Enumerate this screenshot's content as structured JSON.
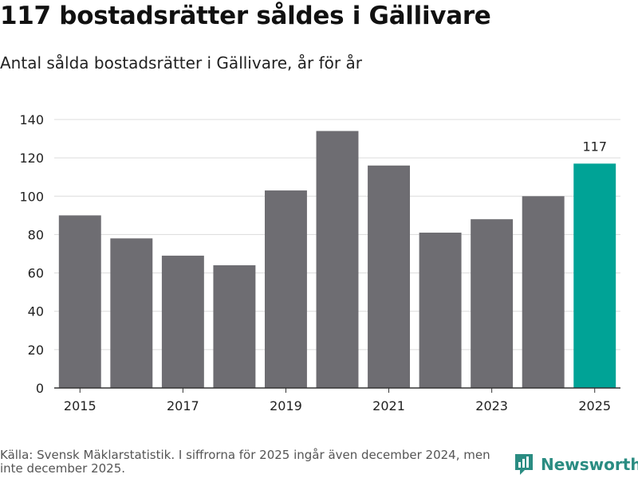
{
  "header": {
    "title": "117 bostadsrätter såldes i Gällivare",
    "subtitle": "Antal sålda bostadsrätter i Gällivare, år för år"
  },
  "footer": {
    "source": "Källa: Svensk Mäklarstatistik. I siffrorna för 2025 ingår även december 2024, men inte december 2025.",
    "brand": "Newsworthy",
    "brand_color": "#2a8c82"
  },
  "chart_data": {
    "type": "bar",
    "title": "117 bostadsrätter såldes i Gällivare",
    "subtitle": "Antal sålda bostadsrätter i Gällivare, år för år",
    "xlabel": "",
    "ylabel": "",
    "categories": [
      "2015",
      "2016",
      "2017",
      "2018",
      "2019",
      "2020",
      "2021",
      "2022",
      "2023",
      "2024",
      "2025"
    ],
    "values": [
      90,
      78,
      69,
      64,
      103,
      134,
      116,
      81,
      88,
      100,
      117
    ],
    "x_tick_labels": [
      "2015",
      "2017",
      "2019",
      "2021",
      "2023",
      "2025"
    ],
    "y_ticks": [
      0,
      20,
      40,
      60,
      80,
      100,
      120,
      140
    ],
    "ylim": [
      0,
      140
    ],
    "grid": true,
    "bar_color": "#6e6d72",
    "highlight_category": "2025",
    "highlight_color": "#00a396",
    "data_labels": [
      {
        "category": "2025",
        "text": "117"
      }
    ]
  }
}
